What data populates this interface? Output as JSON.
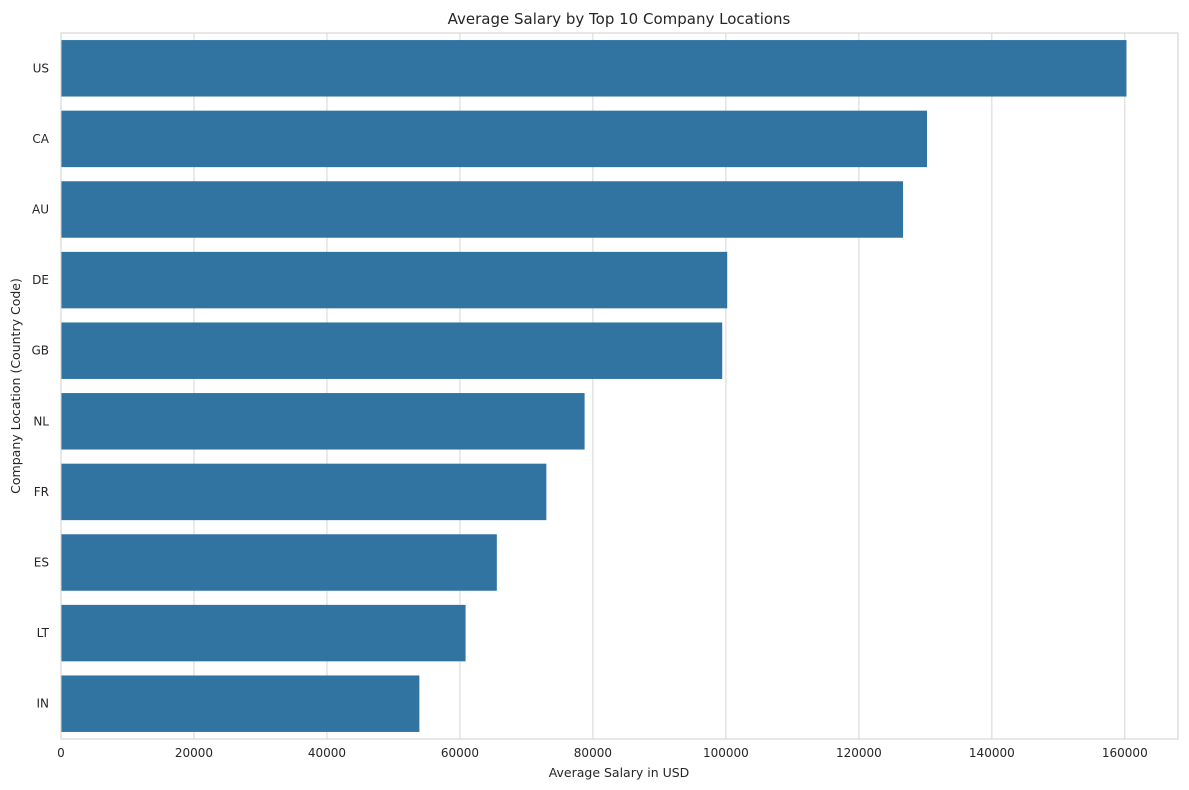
{
  "chart_data": {
    "type": "bar",
    "orientation": "horizontal",
    "title": "Average Salary by Top 10 Company Locations",
    "xlabel": "Average Salary in USD",
    "ylabel": "Company Location (Country Code)",
    "categories": [
      "US",
      "CA",
      "AU",
      "DE",
      "GB",
      "NL",
      "FR",
      "ES",
      "LT",
      "IN"
    ],
    "values": [
      160250,
      130250,
      126650,
      100200,
      99450,
      78750,
      73000,
      65550,
      60850,
      53900
    ],
    "xlim": [
      0,
      168000
    ],
    "xticks": [
      0,
      20000,
      40000,
      60000,
      80000,
      100000,
      120000,
      140000,
      160000
    ],
    "xtick_labels": [
      "0",
      "20000",
      "40000",
      "60000",
      "80000",
      "100000",
      "120000",
      "140000",
      "160000"
    ],
    "grid": "vertical",
    "bar_color": "#3274a1"
  }
}
